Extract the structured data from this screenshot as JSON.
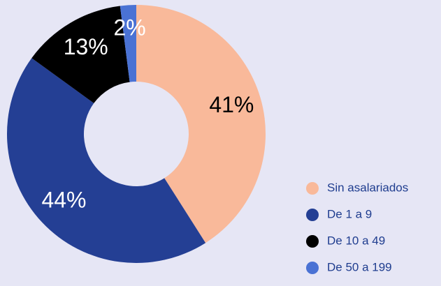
{
  "chart_data": {
    "type": "donut",
    "categories": [
      "Sin asalariados",
      "De 1 a 9",
      "De 10 a 49",
      "De 50 a 199"
    ],
    "values": [
      41,
      44,
      13,
      2
    ],
    "value_labels": [
      "41%",
      "44%",
      "13%",
      "2%"
    ],
    "colors": [
      "#f9b99a",
      "#243f94",
      "#000000",
      "#4a72d4"
    ],
    "label_colors": [
      "#000000",
      "#ffffff",
      "#ffffff",
      "#ffffff"
    ],
    "legend": "bottom-right"
  }
}
